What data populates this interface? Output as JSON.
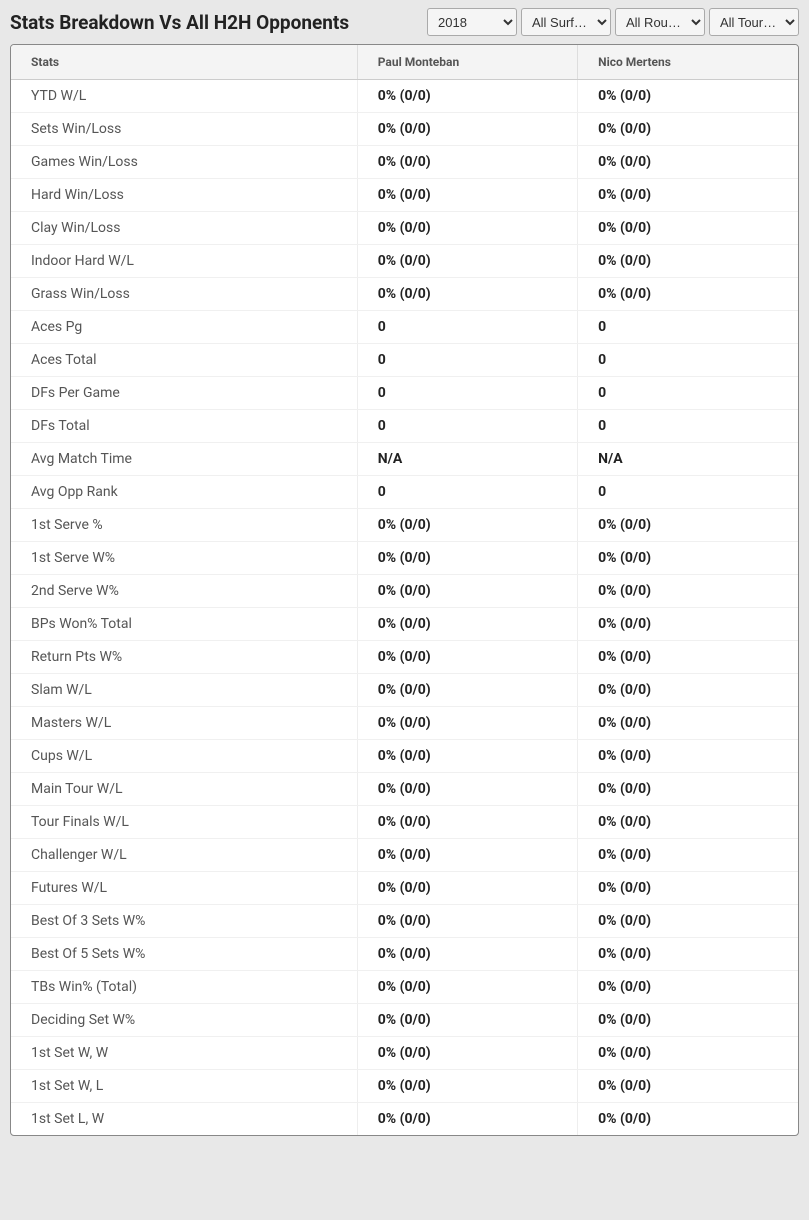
{
  "title": "Stats Breakdown Vs All H2H Opponents",
  "filters": {
    "year": {
      "selected": "2018",
      "options": [
        "2018"
      ]
    },
    "surface": {
      "selected": "All Surf…",
      "options": [
        "All Surf…"
      ]
    },
    "round": {
      "selected": "All Rou…",
      "options": [
        "All Rou…"
      ]
    },
    "tourney": {
      "selected": "All Tour…",
      "options": [
        "All Tour…"
      ]
    }
  },
  "table": {
    "columns": [
      "Stats",
      "Paul Monteban",
      "Nico Mertens"
    ],
    "rows": [
      {
        "stat": "YTD W/L",
        "p1": "0% (0/0)",
        "p2": "0% (0/0)"
      },
      {
        "stat": "Sets Win/Loss",
        "p1": "0% (0/0)",
        "p2": "0% (0/0)"
      },
      {
        "stat": "Games Win/Loss",
        "p1": "0% (0/0)",
        "p2": "0% (0/0)"
      },
      {
        "stat": "Hard Win/Loss",
        "p1": "0% (0/0)",
        "p2": "0% (0/0)"
      },
      {
        "stat": "Clay Win/Loss",
        "p1": "0% (0/0)",
        "p2": "0% (0/0)"
      },
      {
        "stat": "Indoor Hard W/L",
        "p1": "0% (0/0)",
        "p2": "0% (0/0)"
      },
      {
        "stat": "Grass Win/Loss",
        "p1": "0% (0/0)",
        "p2": "0% (0/0)"
      },
      {
        "stat": "Aces Pg",
        "p1": "0",
        "p2": "0"
      },
      {
        "stat": "Aces Total",
        "p1": "0",
        "p2": "0"
      },
      {
        "stat": "DFs Per Game",
        "p1": "0",
        "p2": "0"
      },
      {
        "stat": "DFs Total",
        "p1": "0",
        "p2": "0"
      },
      {
        "stat": "Avg Match Time",
        "p1": "N/A",
        "p2": "N/A"
      },
      {
        "stat": "Avg Opp Rank",
        "p1": "0",
        "p2": "0"
      },
      {
        "stat": "1st Serve %",
        "p1": "0% (0/0)",
        "p2": "0% (0/0)"
      },
      {
        "stat": "1st Serve W%",
        "p1": "0% (0/0)",
        "p2": "0% (0/0)"
      },
      {
        "stat": "2nd Serve W%",
        "p1": "0% (0/0)",
        "p2": "0% (0/0)"
      },
      {
        "stat": "BPs Won% Total",
        "p1": "0% (0/0)",
        "p2": "0% (0/0)"
      },
      {
        "stat": "Return Pts W%",
        "p1": "0% (0/0)",
        "p2": "0% (0/0)"
      },
      {
        "stat": "Slam W/L",
        "p1": "0% (0/0)",
        "p2": "0% (0/0)"
      },
      {
        "stat": "Masters W/L",
        "p1": "0% (0/0)",
        "p2": "0% (0/0)"
      },
      {
        "stat": "Cups W/L",
        "p1": "0% (0/0)",
        "p2": "0% (0/0)"
      },
      {
        "stat": "Main Tour W/L",
        "p1": "0% (0/0)",
        "p2": "0% (0/0)"
      },
      {
        "stat": "Tour Finals W/L",
        "p1": "0% (0/0)",
        "p2": "0% (0/0)"
      },
      {
        "stat": "Challenger W/L",
        "p1": "0% (0/0)",
        "p2": "0% (0/0)"
      },
      {
        "stat": "Futures W/L",
        "p1": "0% (0/0)",
        "p2": "0% (0/0)"
      },
      {
        "stat": "Best Of 3 Sets W%",
        "p1": "0% (0/0)",
        "p2": "0% (0/0)"
      },
      {
        "stat": "Best Of 5 Sets W%",
        "p1": "0% (0/0)",
        "p2": "0% (0/0)"
      },
      {
        "stat": "TBs Win% (Total)",
        "p1": "0% (0/0)",
        "p2": "0% (0/0)"
      },
      {
        "stat": "Deciding Set W%",
        "p1": "0% (0/0)",
        "p2": "0% (0/0)"
      },
      {
        "stat": "1st Set W, W",
        "p1": "0% (0/0)",
        "p2": "0% (0/0)"
      },
      {
        "stat": "1st Set W, L",
        "p1": "0% (0/0)",
        "p2": "0% (0/0)"
      },
      {
        "stat": "1st Set L, W",
        "p1": "0% (0/0)",
        "p2": "0% (0/0)"
      }
    ]
  },
  "colors": {
    "page_bg": "#e8e8e8",
    "table_bg": "#ffffff",
    "header_bg": "#f4f4f4",
    "border": "#888888",
    "text_primary": "#222222",
    "text_secondary": "#555555"
  }
}
